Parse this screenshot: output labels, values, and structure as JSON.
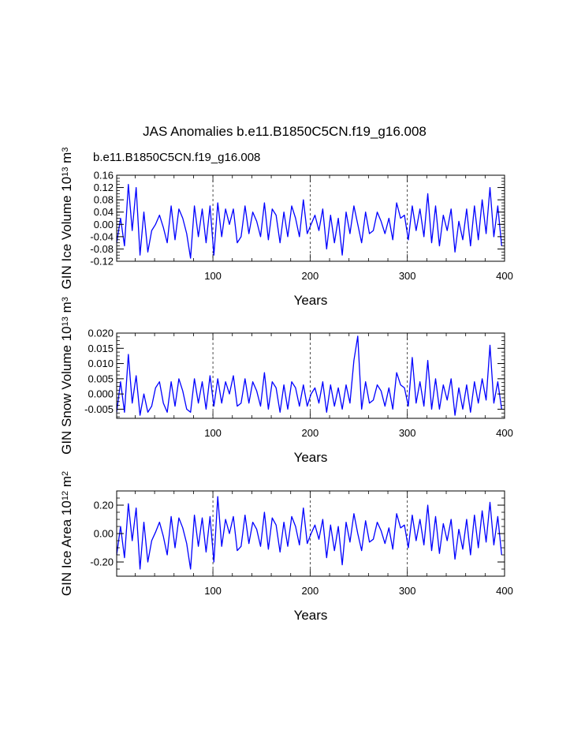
{
  "figure": {
    "title": "JAS Anomalies b.e11.B1850C5CN.f19_g16.008",
    "subtitle": "b.e11.B1850C5CN.f19_g16.008",
    "subtitle_color": "#0000ff"
  },
  "colors": {
    "line": "#0000ff",
    "axis": "#000000",
    "grid": "#000000",
    "background": "#ffffff"
  },
  "chart_data": [
    {
      "type": "line",
      "ylabel": {
        "prefix": "GIN Ice Volume 10",
        "exp": "13",
        "suffix": " m",
        "unit_exp": "3"
      },
      "xlabel": "Years",
      "xlim": [
        1,
        400
      ],
      "ylim": [
        -0.12,
        0.16
      ],
      "xticks": [
        100,
        200,
        300,
        400
      ],
      "xtick_labels": [
        "100",
        "200",
        "300",
        "400"
      ],
      "yticks": [
        -0.12,
        -0.08,
        -0.04,
        0.0,
        0.04,
        0.08,
        0.12,
        0.16
      ],
      "ytick_labels": [
        "-0.12",
        "-0.08",
        "-0.04",
        "0.00",
        "0.04",
        "0.08",
        "0.12",
        "0.16"
      ],
      "grid_x": [
        100,
        200,
        300
      ],
      "series": [
        {
          "name": "b.e11.B1850C5CN.f19_g16.008",
          "x_start": 1,
          "x_step": 4,
          "values": [
            -0.06,
            0.02,
            -0.07,
            0.13,
            -0.02,
            0.12,
            -0.1,
            0.04,
            -0.09,
            -0.02,
            0.0,
            0.03,
            -0.01,
            -0.06,
            0.06,
            -0.05,
            0.05,
            0.02,
            -0.03,
            -0.11,
            0.06,
            -0.04,
            0.05,
            -0.06,
            0.06,
            -0.1,
            0.07,
            -0.04,
            0.05,
            0.0,
            0.05,
            -0.06,
            -0.04,
            0.06,
            -0.03,
            0.04,
            0.01,
            -0.04,
            0.07,
            -0.05,
            0.05,
            0.03,
            -0.06,
            0.04,
            -0.04,
            0.06,
            0.02,
            -0.04,
            0.08,
            -0.03,
            0.0,
            0.03,
            -0.02,
            0.05,
            -0.08,
            0.03,
            -0.06,
            0.02,
            -0.1,
            0.04,
            -0.03,
            0.06,
            0.0,
            -0.06,
            0.04,
            -0.03,
            -0.02,
            0.04,
            0.01,
            -0.03,
            0.02,
            -0.05,
            0.07,
            0.02,
            0.03,
            -0.05,
            0.06,
            -0.02,
            0.05,
            -0.04,
            0.1,
            -0.06,
            0.06,
            -0.07,
            0.03,
            -0.02,
            0.05,
            -0.09,
            0.01,
            -0.05,
            0.05,
            -0.07,
            0.06,
            -0.05,
            0.08,
            -0.03,
            0.12,
            -0.04,
            0.06,
            -0.07
          ]
        }
      ]
    },
    {
      "type": "line",
      "ylabel": {
        "prefix": "GIN Snow Volume 10",
        "exp": "13",
        "suffix": " m",
        "unit_exp": "3"
      },
      "xlabel": "Years",
      "xlim": [
        1,
        400
      ],
      "ylim": [
        -0.008,
        0.02
      ],
      "xticks": [
        100,
        200,
        300,
        400
      ],
      "xtick_labels": [
        "100",
        "200",
        "300",
        "400"
      ],
      "yticks": [
        -0.005,
        0.0,
        0.005,
        0.01,
        0.015,
        0.02
      ],
      "ytick_labels": [
        "-0.005",
        "0.000",
        "0.005",
        "0.010",
        "0.015",
        "0.020"
      ],
      "grid_x": [
        100,
        200,
        300
      ],
      "series": [
        {
          "name": "b.e11.B1850C5CN.f19_g16.008",
          "x_start": 1,
          "x_step": 4,
          "values": [
            -0.006,
            0.004,
            -0.006,
            0.013,
            -0.003,
            0.006,
            -0.007,
            0.0,
            -0.006,
            -0.004,
            0.002,
            0.004,
            -0.003,
            -0.006,
            0.004,
            -0.004,
            0.005,
            0.001,
            -0.005,
            -0.006,
            0.005,
            -0.003,
            0.004,
            -0.005,
            0.006,
            -0.004,
            0.005,
            -0.003,
            0.004,
            0.0,
            0.006,
            -0.004,
            -0.003,
            0.005,
            -0.003,
            0.004,
            0.001,
            -0.004,
            0.007,
            -0.005,
            0.004,
            0.002,
            -0.006,
            0.003,
            -0.005,
            0.004,
            0.002,
            -0.004,
            0.003,
            -0.004,
            0.0,
            0.002,
            -0.003,
            0.004,
            -0.006,
            0.003,
            -0.004,
            0.002,
            -0.005,
            0.003,
            -0.003,
            0.011,
            0.019,
            -0.005,
            0.004,
            -0.003,
            -0.002,
            0.003,
            0.001,
            -0.004,
            0.002,
            -0.005,
            0.007,
            0.003,
            0.002,
            -0.004,
            0.012,
            -0.003,
            0.004,
            -0.004,
            0.011,
            -0.005,
            0.005,
            -0.005,
            0.003,
            -0.002,
            0.005,
            -0.007,
            0.002,
            -0.005,
            0.003,
            -0.006,
            0.004,
            -0.003,
            0.005,
            -0.002,
            0.016,
            -0.003,
            0.004,
            -0.005
          ]
        }
      ]
    },
    {
      "type": "line",
      "ylabel": {
        "prefix": "GIN Ice Area 10",
        "exp": "12",
        "suffix": " m",
        "unit_exp": "2"
      },
      "xlabel": "Years",
      "xlim": [
        1,
        400
      ],
      "ylim": [
        -0.3,
        0.3
      ],
      "xticks": [
        100,
        200,
        300,
        400
      ],
      "xtick_labels": [
        "100",
        "200",
        "300",
        "400"
      ],
      "yticks": [
        -0.2,
        0.0,
        0.2
      ],
      "ytick_labels": [
        "-0.20",
        "0.00",
        "0.20"
      ],
      "grid_x": [
        100,
        200,
        300
      ],
      "series": [
        {
          "name": "b.e11.B1850C5CN.f19_g16.008",
          "x_start": 1,
          "x_step": 4,
          "values": [
            -0.15,
            0.05,
            -0.17,
            0.21,
            -0.05,
            0.18,
            -0.25,
            0.08,
            -0.2,
            -0.05,
            0.01,
            0.08,
            -0.02,
            -0.15,
            0.12,
            -0.1,
            0.11,
            0.04,
            -0.07,
            -0.25,
            0.13,
            -0.09,
            0.11,
            -0.13,
            0.12,
            -0.2,
            0.26,
            -0.09,
            0.1,
            0.0,
            0.12,
            -0.12,
            -0.09,
            0.13,
            -0.07,
            0.08,
            0.03,
            -0.09,
            0.15,
            -0.11,
            0.11,
            0.06,
            -0.13,
            0.08,
            -0.09,
            0.12,
            0.05,
            -0.08,
            0.18,
            -0.07,
            0.0,
            0.06,
            -0.04,
            0.1,
            -0.17,
            0.06,
            -0.12,
            0.05,
            -0.22,
            0.08,
            -0.06,
            0.14,
            0.0,
            -0.12,
            0.09,
            -0.06,
            -0.04,
            0.08,
            0.02,
            -0.07,
            0.04,
            -0.11,
            0.14,
            0.04,
            0.06,
            -0.1,
            0.13,
            -0.05,
            0.1,
            -0.08,
            0.2,
            -0.12,
            0.12,
            -0.14,
            0.07,
            -0.05,
            0.1,
            -0.18,
            0.03,
            -0.11,
            0.1,
            -0.15,
            0.13,
            -0.1,
            0.16,
            -0.06,
            0.22,
            -0.08,
            0.12,
            -0.15
          ]
        }
      ]
    }
  ]
}
